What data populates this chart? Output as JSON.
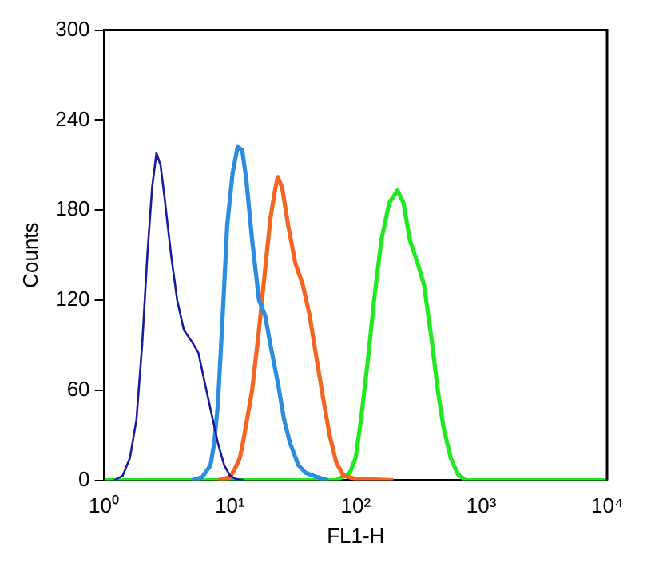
{
  "chart_data": {
    "type": "line",
    "xlabel": "FL1-H",
    "ylabel": "Counts",
    "log": "x",
    "grid": false,
    "legend": false,
    "marker": "none",
    "line_style": "solid",
    "xlim": [
      1,
      10000
    ],
    "xticks": [
      {
        "value": 1,
        "label": "10⁰"
      },
      {
        "value": 10,
        "label": "10¹"
      },
      {
        "value": 100,
        "label": "10²"
      },
      {
        "value": 1000,
        "label": "10³"
      },
      {
        "value": 10000,
        "label": "10⁴"
      }
    ],
    "ylim": [
      0,
      300
    ],
    "yticks": [
      0,
      60,
      120,
      180,
      240,
      300
    ],
    "series": [
      {
        "color": "#1a1a9c",
        "x": [
          1.2,
          1.4,
          1.6,
          1.8,
          2.0,
          2.2,
          2.4,
          2.6,
          2.8,
          3.0,
          3.4,
          3.8,
          4.3,
          5.0,
          5.6,
          6.3,
          7.1,
          8,
          9,
          10,
          11,
          13
        ],
        "values": [
          0,
          3,
          15,
          40,
          90,
          150,
          195,
          218,
          210,
          190,
          150,
          120,
          100,
          92,
          85,
          65,
          45,
          25,
          10,
          3,
          1,
          0
        ]
      },
      {
        "color": "#2a8de0",
        "x": [
          5,
          6,
          7,
          7.5,
          8,
          8.5,
          9,
          9.5,
          10.5,
          11.5,
          12.5,
          13.5,
          15,
          17,
          19,
          21,
          24,
          27,
          30,
          35,
          40,
          50,
          60
        ],
        "values": [
          0,
          2,
          10,
          25,
          50,
          90,
          130,
          170,
          205,
          222,
          220,
          200,
          160,
          120,
          110,
          90,
          65,
          40,
          25,
          10,
          5,
          2,
          0
        ]
      },
      {
        "color": "#f26522",
        "x": [
          8,
          10,
          11,
          12,
          13,
          15,
          17,
          19,
          21,
          23,
          24,
          26,
          29,
          33,
          38,
          43,
          48,
          55,
          62,
          70,
          80,
          100,
          200
        ],
        "values": [
          0,
          2,
          8,
          15,
          30,
          60,
          100,
          140,
          175,
          195,
          202,
          195,
          170,
          145,
          130,
          110,
          85,
          55,
          30,
          12,
          3,
          1,
          0
        ]
      },
      {
        "color": "#22e822",
        "x": [
          1,
          70,
          90,
          100,
          110,
          125,
          140,
          160,
          185,
          215,
          240,
          270,
          310,
          350,
          400,
          450,
          500,
          570,
          650,
          750,
          10000
        ],
        "values": [
          0,
          0,
          5,
          15,
          40,
          80,
          120,
          160,
          185,
          193,
          185,
          160,
          145,
          130,
          95,
          60,
          35,
          15,
          4,
          0,
          0
        ]
      }
    ]
  }
}
